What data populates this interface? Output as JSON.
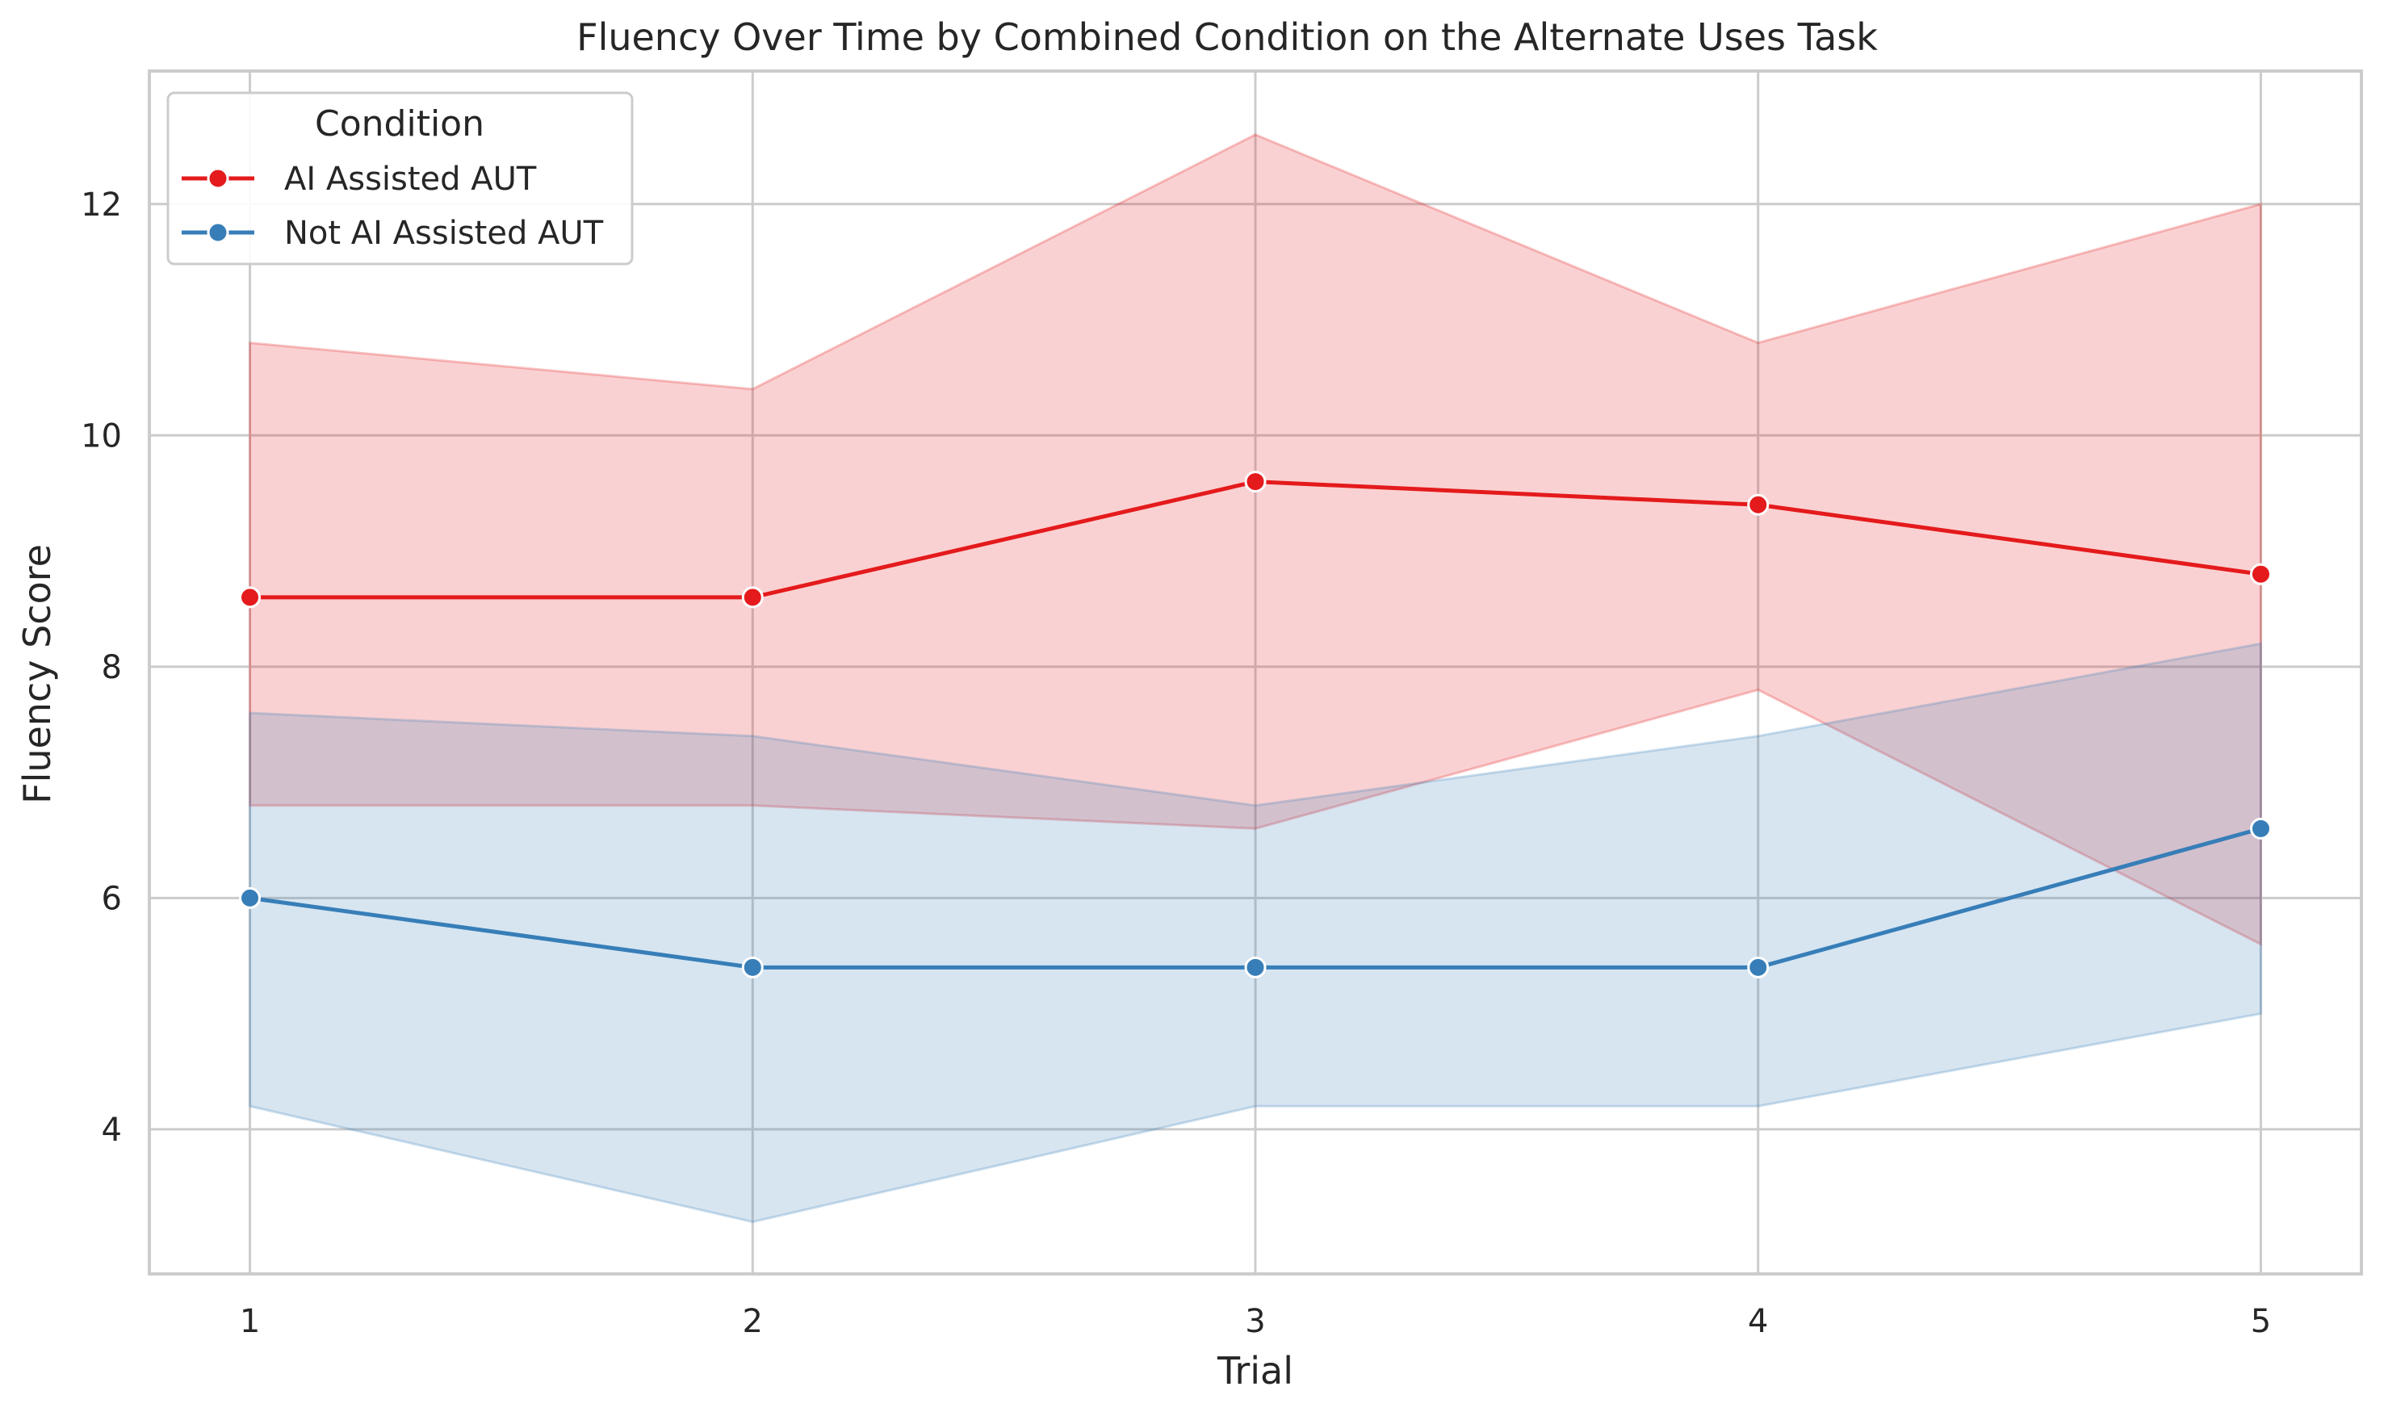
{
  "chart_data": {
    "type": "line",
    "title": "Fluency Over Time by Combined Condition on the Alternate Uses Task",
    "xlabel": "Trial",
    "ylabel": "Fluency Score",
    "x": [
      1,
      2,
      3,
      4,
      5
    ],
    "x_tick_labels": [
      "1",
      "2",
      "3",
      "4",
      "5"
    ],
    "y_ticks": [
      4,
      6,
      8,
      10,
      12
    ],
    "y_tick_labels": [
      "4",
      "6",
      "8",
      "10",
      "12"
    ],
    "xlim": [
      0.8,
      5.2
    ],
    "ylim": [
      2.75,
      13.15
    ],
    "grid": true,
    "legend": {
      "title": "Condition",
      "placement": "top-left"
    },
    "series": [
      {
        "name": "AI Assisted AUT",
        "color": "#e41a1c",
        "values": [
          8.6,
          8.6,
          9.6,
          9.4,
          8.8
        ],
        "ci_lower": [
          6.8,
          6.8,
          6.6,
          7.8,
          5.6
        ],
        "ci_upper": [
          10.8,
          10.4,
          12.6,
          10.8,
          12.0
        ],
        "marker": "circle"
      },
      {
        "name": "Not AI Assisted AUT",
        "color": "#377eb8",
        "values": [
          6.0,
          5.4,
          5.4,
          5.4,
          6.6
        ],
        "ci_lower": [
          4.2,
          3.2,
          4.2,
          4.2,
          5.0
        ],
        "ci_upper": [
          7.6,
          7.4,
          6.8,
          7.4,
          8.2
        ],
        "marker": "circle"
      }
    ]
  }
}
